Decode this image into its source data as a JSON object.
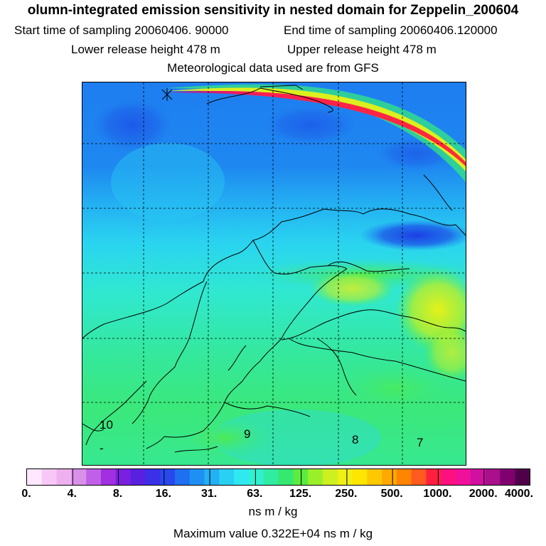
{
  "title": "olumn-integrated emission sensitivity in nested domain for Zeppelin_200604",
  "start_label": "Start time of sampling 20060406. 90000",
  "end_label": "End time of sampling 20060406.120000",
  "lower_label": "Lower release height  478 m",
  "upper_label": "Upper release height  478 m",
  "met_label": "Meteorological data used are from GFS",
  "map": {
    "contour_labels": [
      "10",
      "9",
      "8",
      "7",
      "-"
    ],
    "colors": {
      "deep_blue": "#1d5ae8",
      "mid_blue": "#1e8cf0",
      "cyan": "#29d8f0",
      "green": "#34e87a",
      "yellow": "#d6f01c",
      "magenta": "#e0108c"
    }
  },
  "colorbar": {
    "colors": [
      "#ffe8ff",
      "#f7c8f7",
      "#eeb0ee",
      "#d990e8",
      "#c060e8",
      "#a030e0",
      "#7a20e0",
      "#5a20e0",
      "#3a30e8",
      "#2848ee",
      "#1e70f0",
      "#1e90f4",
      "#24b0f4",
      "#2ad0f2",
      "#30e8f0",
      "#30f0d0",
      "#30eca0",
      "#34e870",
      "#5aec40",
      "#9af028",
      "#ccf020",
      "#eef018",
      "#ffe600",
      "#ffc800",
      "#ffa800",
      "#ff8400",
      "#ff5a20",
      "#ff2040",
      "#ff1080",
      "#f0109a",
      "#d010a0",
      "#a8108c",
      "#800070",
      "#500048"
    ],
    "ticks": [
      "0.",
      "4.",
      "8.",
      "16.",
      "31.",
      "63.",
      "125.",
      "250.",
      "500.",
      "1000.",
      "2000.",
      "4000."
    ]
  },
  "units": "ns m / kg",
  "max_value": "Maximum value  0.322E+04 ns m / kg"
}
